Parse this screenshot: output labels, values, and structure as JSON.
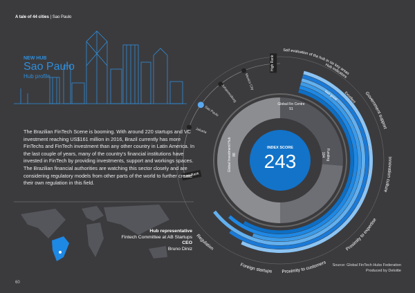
{
  "header": {
    "series": "A tale of 44 cities",
    "city": "Sao Paulo"
  },
  "hub": {
    "tag": "NEW HUB",
    "name": "Sao Paulo",
    "subtitle": "Hub profile"
  },
  "body": "The Brazilian FinTech Scene is booming. With around 220 startups and VC investment reaching US$161 million in 2016, Brazil currently has more FinTechs and FinTech investment than any other country in Latin America. In the last couple of years, many of the country's financial institutions have invested in FinTech by providing investments, support and workings spaces. The Brazilian financial authorities are watching this sector closely and are considering regulatory models from other parts of the world to further create their own regulation in this field.",
  "representative": {
    "heading": "Hub representative",
    "org": "Fintech Committee at AB Startups",
    "role": "CEO",
    "name": "Bruno Diniz"
  },
  "dial": {
    "title": "INDEX SCORE",
    "score": 243,
    "segments": [
      {
        "label": "Global Fin Centre",
        "value": 51
      },
      {
        "label": "Funding",
        "value": 104
      },
      {
        "label": "Global Investment Hub",
        "value": 88
      }
    ],
    "rank_high": "High Rank",
    "rank_low": "Low Rank",
    "cities": [
      "Mexico City",
      "Johannesburg",
      "Sao Paulo",
      "Jakarta"
    ],
    "self_eval": "Self evaluation of the hub in six key areas",
    "indicators": "Hub indicators",
    "excellent": "Excellent",
    "not_good": "Not good",
    "areas": [
      "Government support",
      "Innovation culture",
      "Proximity to expertise",
      "Proximity to customers",
      "Foreign startups",
      "Regulation"
    ]
  },
  "source": "Source: Global FinTech Hubs Federation",
  "producer": "Produced by Deloitte",
  "page": "60"
}
